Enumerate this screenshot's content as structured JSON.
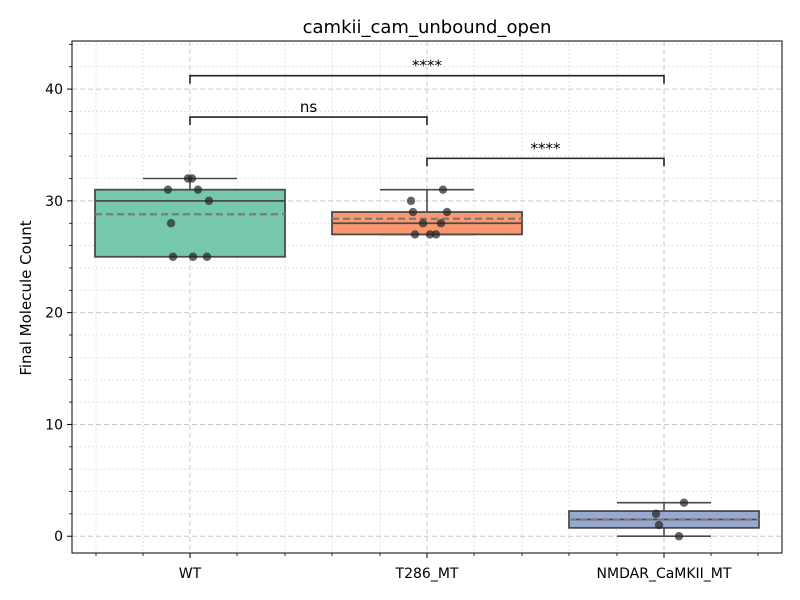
{
  "chart_data": {
    "type": "box",
    "title": "camkii_cam_unbound_open",
    "xlabel": "",
    "ylabel": "Final Molecule Count",
    "categories": [
      "WT",
      "T286_MT",
      "NMDAR_CaMKII_MT"
    ],
    "ylim": [
      -1.5,
      44.3
    ],
    "yticks": [
      0,
      10,
      20,
      30,
      40
    ],
    "grid": true,
    "boxes": [
      {
        "name": "WT",
        "color": "#66c2a5",
        "q1": 25,
        "median": 30,
        "mean": 28.8,
        "q3": 31,
        "whisker_low": 25,
        "whisker_high": 32,
        "points": [
          32,
          32,
          31,
          31,
          30,
          28,
          25,
          25,
          25
        ]
      },
      {
        "name": "T286_MT",
        "color": "#fc8d62",
        "q1": 27,
        "median": 28,
        "mean": 28.4,
        "q3": 29,
        "whisker_low": 27,
        "whisker_high": 31,
        "points": [
          31,
          30,
          29,
          29,
          28,
          28,
          27,
          27,
          27
        ]
      },
      {
        "name": "NMDAR_CaMKII_MT",
        "color": "#8da0cb",
        "q1": 0.75,
        "median": 1.5,
        "mean": 1.5,
        "q3": 2.25,
        "whisker_low": 0,
        "whisker_high": 3,
        "points": [
          3,
          2,
          1,
          0
        ]
      }
    ],
    "significance": [
      {
        "from": 0,
        "to": 1,
        "y": 37.5,
        "label": "ns"
      },
      {
        "from": 1,
        "to": 2,
        "y": 33.8,
        "label": "****"
      },
      {
        "from": 0,
        "to": 2,
        "y": 41.2,
        "label": "****"
      }
    ]
  }
}
